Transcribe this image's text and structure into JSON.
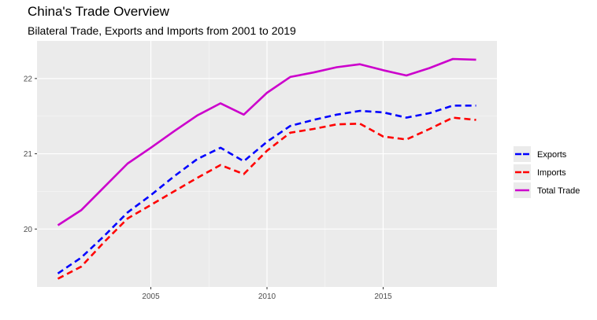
{
  "title": "China's Trade Overview",
  "subtitle": "Bilateral Trade, Exports and Imports from 2001 to 2019",
  "chart_data": {
    "type": "line",
    "title": "China's Trade Overview",
    "subtitle": "Bilateral Trade, Exports and Imports from 2001 to 2019",
    "xlabel": "",
    "ylabel": "",
    "x": [
      2001,
      2002,
      2003,
      2004,
      2005,
      2006,
      2007,
      2008,
      2009,
      2010,
      2011,
      2012,
      2013,
      2014,
      2015,
      2016,
      2017,
      2018,
      2019
    ],
    "xlim": [
      2000.1,
      2019.9
    ],
    "ylim": [
      19.23,
      22.5
    ],
    "x_ticks": [
      "2005",
      "2010",
      "2015"
    ],
    "y_ticks": [
      "20",
      "21",
      "22"
    ],
    "grid": true,
    "legend_position": "right",
    "series": [
      {
        "name": "Exports",
        "color": "#0000ff",
        "style": "dashed",
        "values": [
          19.41,
          19.62,
          19.91,
          20.22,
          20.45,
          20.7,
          20.93,
          21.08,
          20.9,
          21.16,
          21.37,
          21.45,
          21.52,
          21.57,
          21.55,
          21.48,
          21.54,
          21.64,
          21.64
        ]
      },
      {
        "name": "Imports",
        "color": "#ff0000",
        "style": "dashed",
        "values": [
          19.34,
          19.5,
          19.83,
          20.14,
          20.32,
          20.5,
          20.68,
          20.85,
          20.73,
          21.04,
          21.28,
          21.33,
          21.39,
          21.4,
          21.23,
          21.19,
          21.33,
          21.48,
          21.45
        ]
      },
      {
        "name": "Total Trade",
        "color": "#cc00cc",
        "style": "solid",
        "values": [
          20.05,
          20.25,
          20.56,
          20.87,
          21.08,
          21.3,
          21.51,
          21.67,
          21.52,
          21.81,
          22.02,
          22.08,
          22.15,
          22.19,
          22.11,
          22.04,
          22.14,
          22.26,
          22.25
        ]
      }
    ]
  }
}
